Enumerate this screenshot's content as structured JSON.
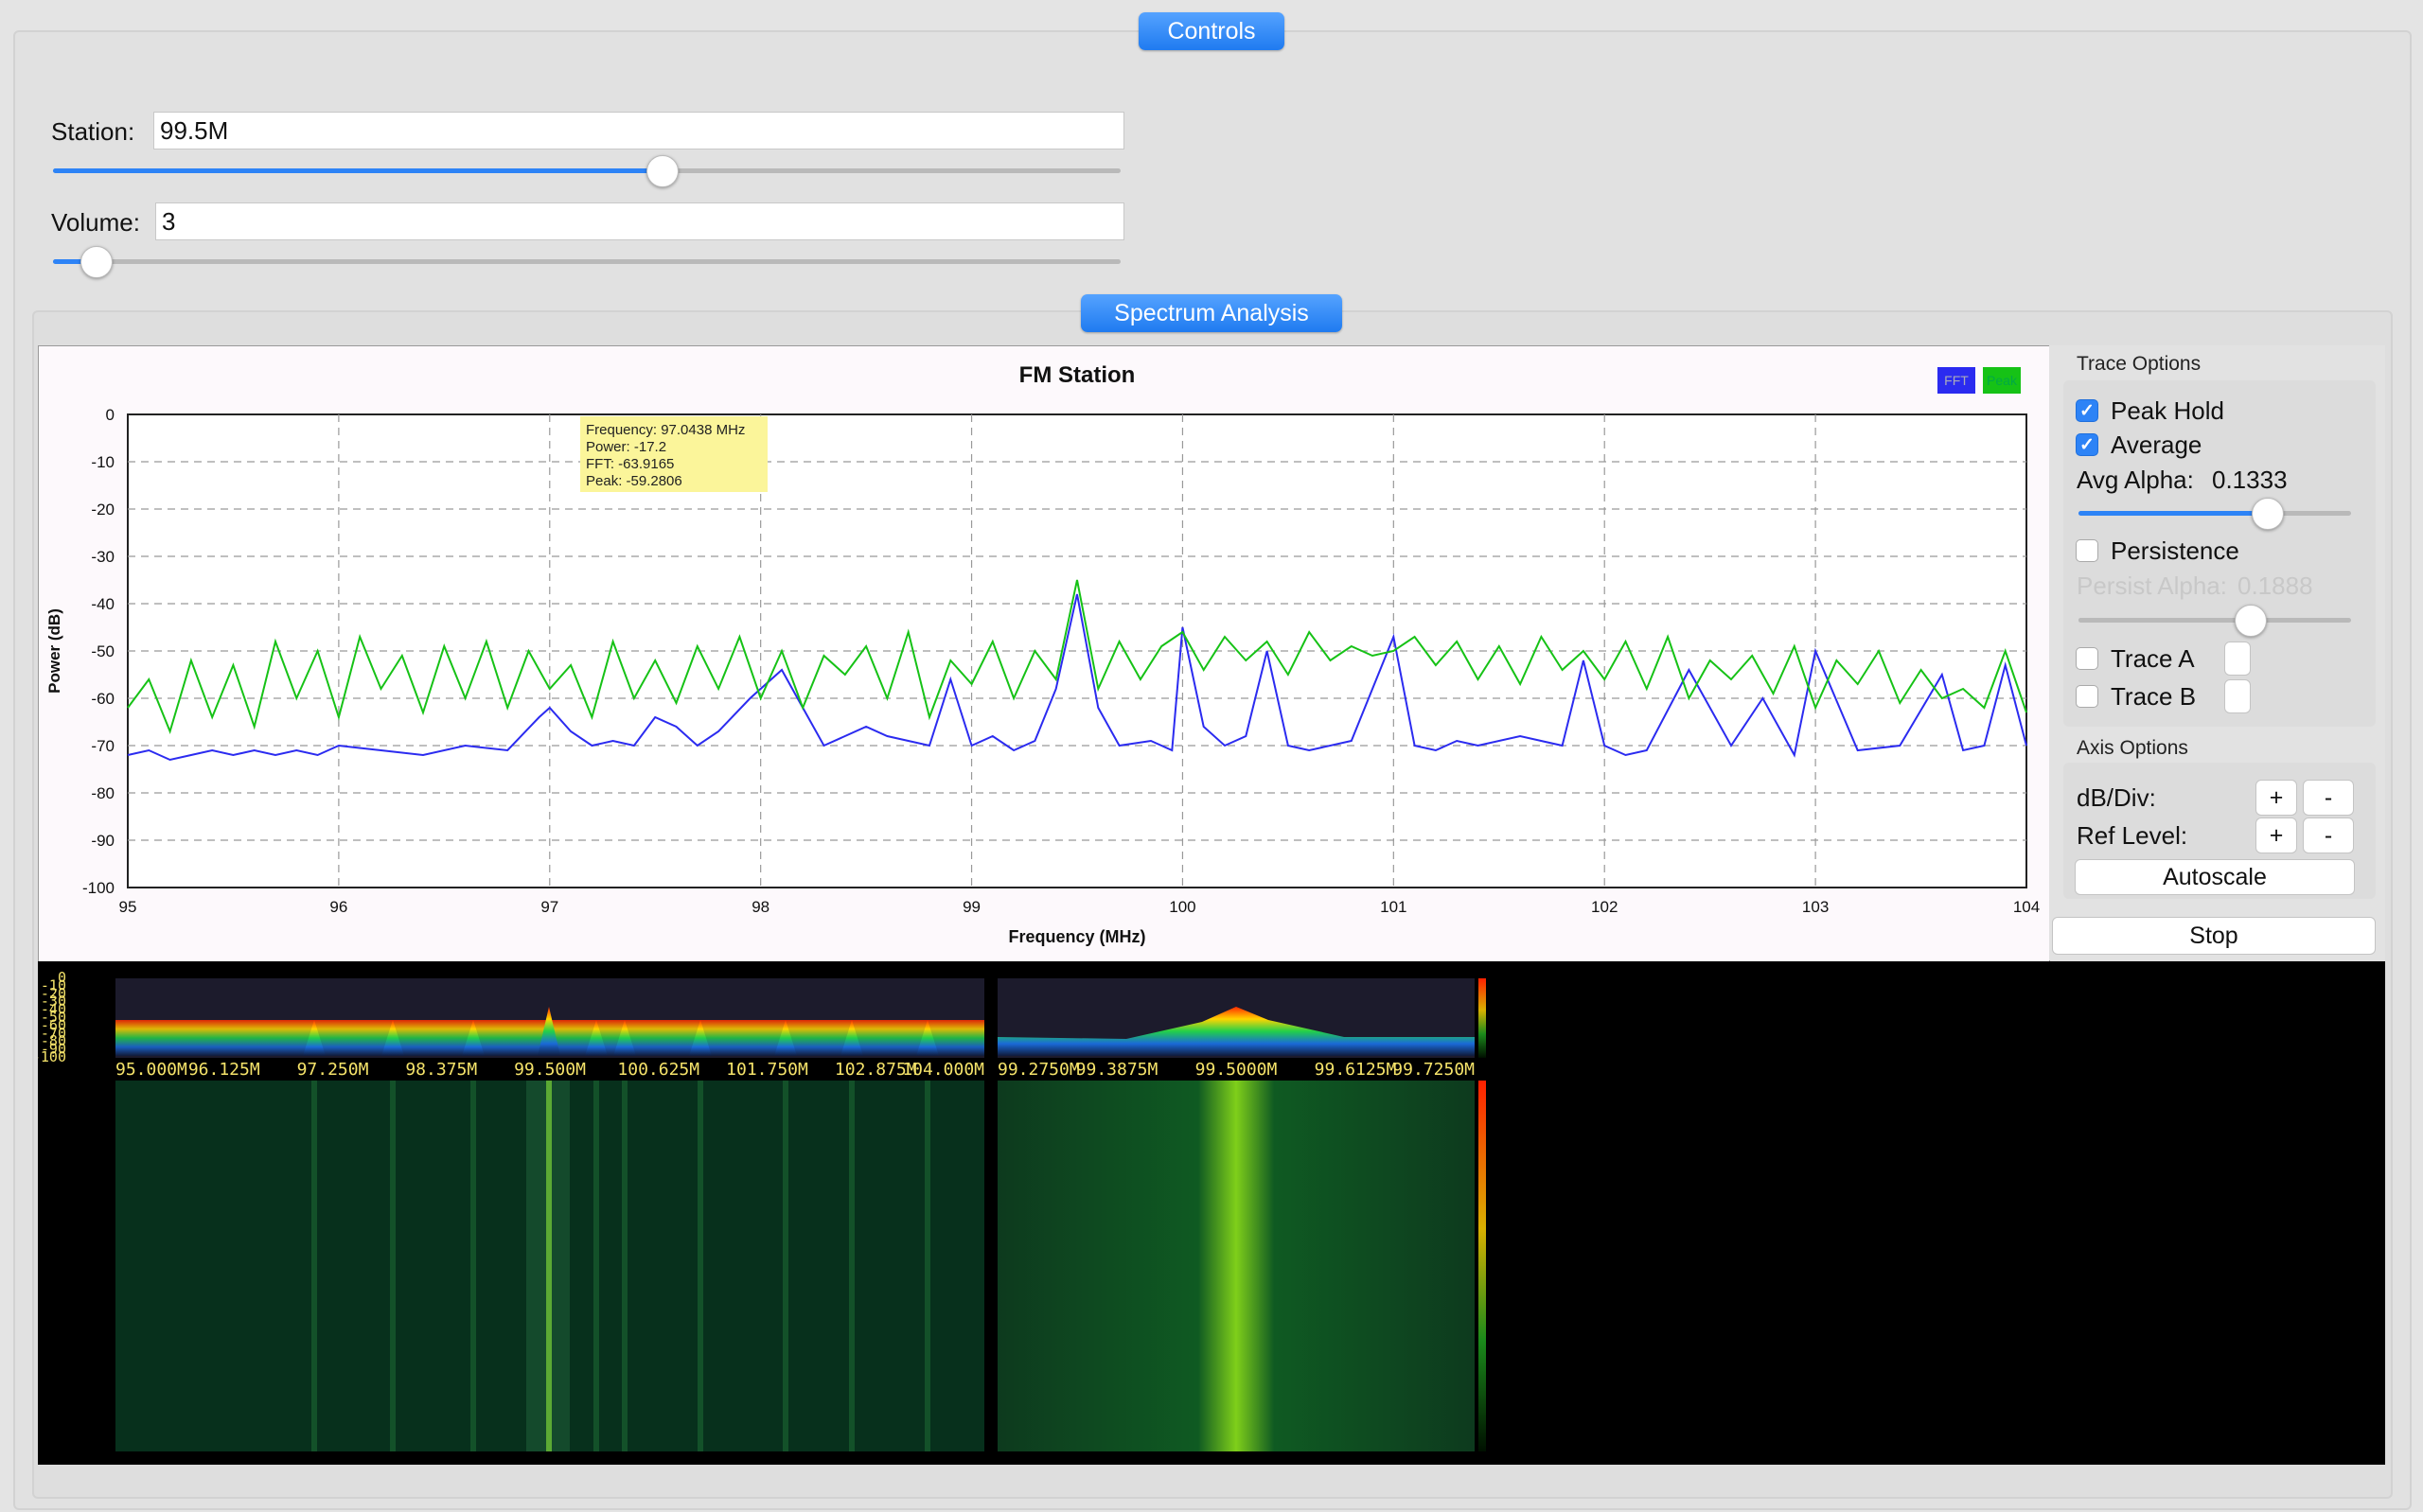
{
  "controls": {
    "title": "Controls",
    "station_label": "Station:",
    "station_value": "99.5M",
    "station_level": 0.57,
    "volume_label": "Volume:",
    "volume_value": "3",
    "volume_level": 0.04
  },
  "spectrum": {
    "title": "Spectrum Analysis"
  },
  "chart_data": {
    "type": "line",
    "title": "FM Station",
    "xlabel": "Frequency (MHz)",
    "ylabel": "Power (dB)",
    "xlim": [
      95,
      104
    ],
    "ylim": [
      -100,
      0
    ],
    "xticks": [
      "95",
      "96",
      "97",
      "98",
      "99",
      "100",
      "101",
      "102",
      "103",
      "104"
    ],
    "yticks": [
      "0",
      "-10",
      "-20",
      "-30",
      "-40",
      "-50",
      "-60",
      "-70",
      "-80",
      "-90",
      "-100"
    ],
    "grid": true,
    "legend": [
      "FFT",
      "Peak"
    ],
    "legend_position": "top-right",
    "colors": {
      "fft": "#2b2bf0",
      "peak": "#16c216"
    },
    "series": [
      {
        "name": "FFT",
        "x": [
          95.0,
          95.1,
          95.2,
          95.3,
          95.4,
          95.5,
          95.6,
          95.7,
          95.8,
          95.9,
          96.0,
          96.2,
          96.4,
          96.6,
          96.8,
          96.95,
          97.0,
          97.1,
          97.2,
          97.3,
          97.4,
          97.5,
          97.6,
          97.7,
          97.8,
          97.95,
          98.1,
          98.2,
          98.3,
          98.5,
          98.6,
          98.7,
          98.8,
          98.9,
          99.0,
          99.1,
          99.2,
          99.3,
          99.4,
          99.5,
          99.6,
          99.7,
          99.85,
          99.95,
          100.0,
          100.1,
          100.2,
          100.3,
          100.4,
          100.5,
          100.6,
          100.8,
          101.0,
          101.1,
          101.2,
          101.3,
          101.4,
          101.6,
          101.8,
          101.9,
          102.0,
          102.1,
          102.2,
          102.4,
          102.6,
          102.75,
          102.9,
          103.0,
          103.2,
          103.4,
          103.6,
          103.7,
          103.8,
          103.9,
          104.0
        ],
        "values": [
          -72,
          -71,
          -73,
          -72,
          -71,
          -72,
          -71,
          -72,
          -71,
          -72,
          -70,
          -71,
          -72,
          -70,
          -71,
          -64,
          -62,
          -67,
          -70,
          -69,
          -70,
          -64,
          -66,
          -70,
          -67,
          -60,
          -54,
          -62,
          -70,
          -66,
          -68,
          -69,
          -70,
          -56,
          -70,
          -68,
          -71,
          -69,
          -58,
          -38,
          -62,
          -70,
          -69,
          -71,
          -45,
          -66,
          -70,
          -68,
          -50,
          -70,
          -71,
          -69,
          -47,
          -70,
          -71,
          -69,
          -70,
          -68,
          -70,
          -52,
          -70,
          -72,
          -71,
          -54,
          -70,
          -60,
          -72,
          -50,
          -71,
          -70,
          -55,
          -71,
          -70,
          -53,
          -70
        ]
      },
      {
        "name": "Peak",
        "x": [
          95.0,
          95.1,
          95.2,
          95.3,
          95.4,
          95.5,
          95.6,
          95.7,
          95.8,
          95.9,
          96.0,
          96.1,
          96.2,
          96.3,
          96.4,
          96.5,
          96.6,
          96.7,
          96.8,
          96.9,
          97.0,
          97.1,
          97.2,
          97.3,
          97.4,
          97.5,
          97.6,
          97.7,
          97.8,
          97.9,
          98.0,
          98.1,
          98.2,
          98.3,
          98.4,
          98.5,
          98.6,
          98.7,
          98.8,
          98.9,
          99.0,
          99.1,
          99.2,
          99.3,
          99.4,
          99.5,
          99.6,
          99.7,
          99.8,
          99.9,
          100.0,
          100.1,
          100.2,
          100.3,
          100.4,
          100.5,
          100.6,
          100.7,
          100.8,
          100.9,
          101.0,
          101.1,
          101.2,
          101.3,
          101.4,
          101.5,
          101.6,
          101.7,
          101.8,
          101.9,
          102.0,
          102.1,
          102.2,
          102.3,
          102.4,
          102.5,
          102.6,
          102.7,
          102.8,
          102.9,
          103.0,
          103.1,
          103.2,
          103.3,
          103.4,
          103.5,
          103.6,
          103.7,
          103.8,
          103.9,
          104.0
        ],
        "values": [
          -62,
          -56,
          -67,
          -52,
          -64,
          -53,
          -66,
          -48,
          -60,
          -50,
          -64,
          -47,
          -58,
          -51,
          -63,
          -49,
          -60,
          -48,
          -62,
          -50,
          -58,
          -53,
          -64,
          -48,
          -60,
          -52,
          -61,
          -49,
          -58,
          -47,
          -60,
          -50,
          -62,
          -51,
          -55,
          -49,
          -60,
          -46,
          -64,
          -52,
          -57,
          -48,
          -60,
          -50,
          -56,
          -35,
          -58,
          -48,
          -56,
          -49,
          -46,
          -54,
          -47,
          -52,
          -48,
          -55,
          -46,
          -52,
          -49,
          -51,
          -50,
          -47,
          -53,
          -48,
          -56,
          -49,
          -57,
          -47,
          -54,
          -50,
          -56,
          -48,
          -58,
          -47,
          -60,
          -52,
          -56,
          -51,
          -59,
          -49,
          -62,
          -52,
          -57,
          -50,
          -61,
          -54,
          -60,
          -58,
          -62,
          -50,
          -63
        ]
      }
    ],
    "tooltip": {
      "frequency": "Frequency: 97.0438 MHz",
      "power": "Power: -17.2",
      "fft": "FFT: -63.9165",
      "peak": "Peak: -59.2806"
    }
  },
  "waterfall": {
    "left_db_ticks": [
      "0",
      "-10",
      "-20",
      "-30",
      "-40",
      "-50",
      "-60",
      "-70",
      "-80",
      "-90",
      "-100"
    ],
    "left_freq_ticks": [
      "95.000M",
      "96.125M",
      "97.250M",
      "98.375M",
      "99.500M",
      "100.625M",
      "101.750M",
      "102.875M",
      "104.000M"
    ],
    "right_freq_ticks": [
      "99.2750M",
      "99.3875M",
      "99.5000M",
      "99.6125M",
      "99.7250M"
    ]
  },
  "trace_options": {
    "title": "Trace Options",
    "peak_hold_label": "Peak Hold",
    "peak_hold": true,
    "average_label": "Average",
    "average": true,
    "avg_alpha_label": "Avg Alpha:",
    "avg_alpha_value": "0.1333",
    "avg_alpha_level": 0.69,
    "persistence_label": "Persistence",
    "persistence": false,
    "persist_alpha_label": "Persist Alpha:",
    "persist_alpha_value": "0.1888",
    "persist_alpha_level": 0.63,
    "trace_a_label": "Trace A",
    "trace_b_label": "Trace B"
  },
  "axis_options": {
    "title": "Axis Options",
    "db_div_label": "dB/Div:",
    "ref_level_label": "Ref Level:",
    "plus": "+",
    "minus": "-",
    "autoscale_label": "Autoscale"
  },
  "stop_label": "Stop"
}
